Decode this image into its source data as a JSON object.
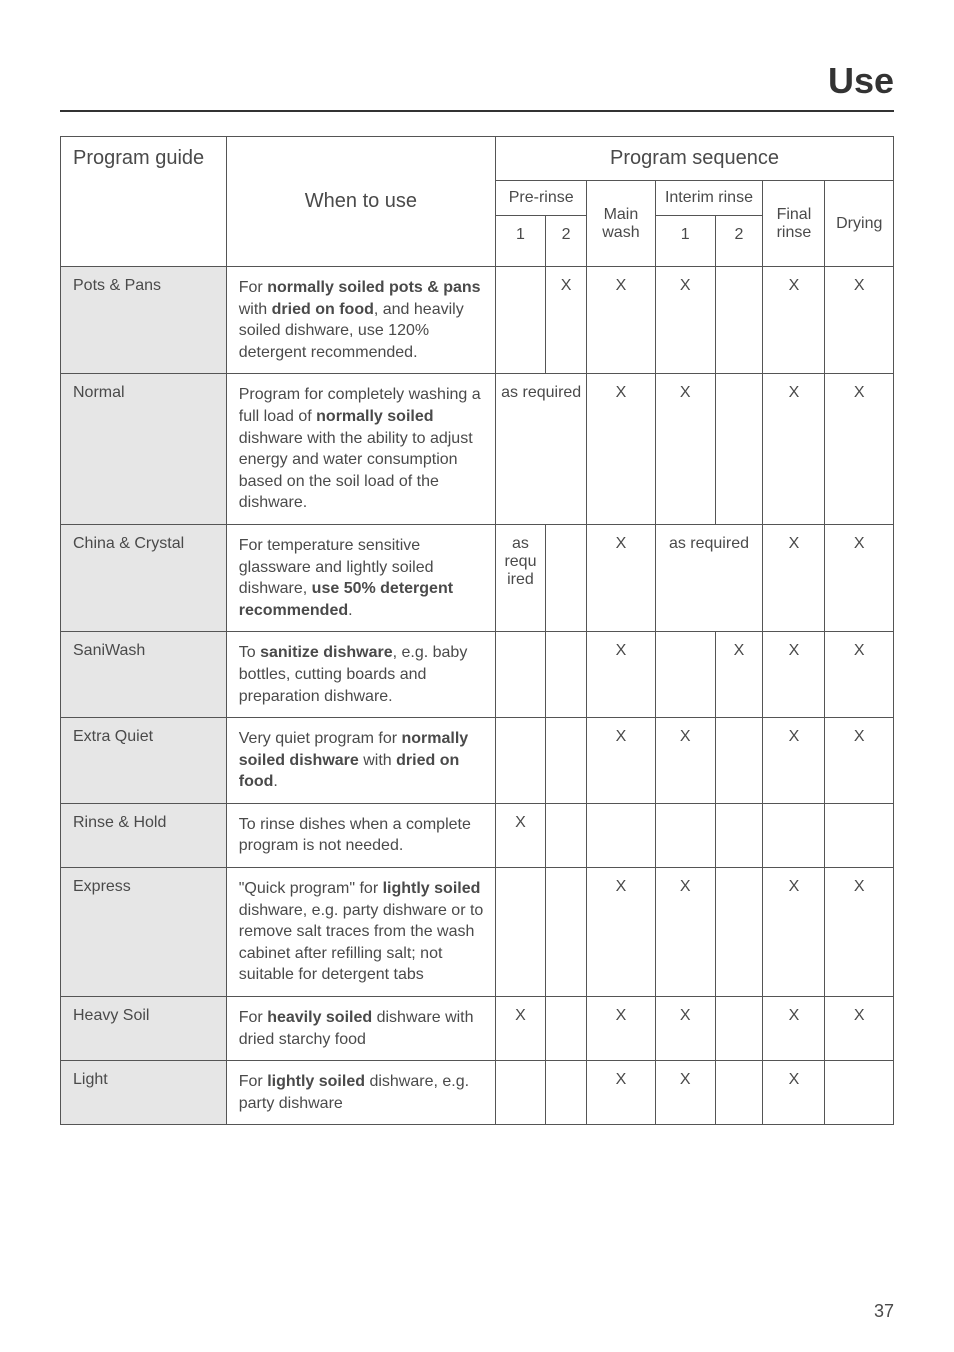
{
  "page": {
    "title": "Use",
    "number": "37"
  },
  "headers": {
    "program_guide": "Program guide",
    "when_to_use": "When to use",
    "program_sequence": "Program sequence",
    "pre_rinse": "Pre-rinse",
    "main_wash": "Main wash",
    "interim_rinse": "Interim rinse",
    "final_rinse": "Final rinse",
    "drying": "Drying",
    "one": "1",
    "two": "2"
  },
  "rows": [
    {
      "program": "Pots & Pans",
      "desc": "For <b>normally soiled pots & pans</b> with <b>dried on food</b>, and heavily soiled dishware, use 120% detergent recommended.",
      "pr1": "",
      "pr2": "X",
      "main": "X",
      "ir1": "X",
      "ir2": "",
      "final": "X",
      "dry": "X"
    },
    {
      "program": "Normal",
      "desc": "Program for completely washing a full load of <b>normally soiled</b> dishware with the ability to adjust energy and water consumption based on the soil load of the dishware.",
      "pr_span": "as required",
      "main": "X",
      "ir1": "X",
      "ir2": "",
      "final": "X",
      "dry": "X"
    },
    {
      "program": "China & Crystal",
      "desc": "For temperature sensitive glassware and lightly soiled dishware, <b>use 50% detergent recommended</b>.",
      "pr1": "as requ ired",
      "pr2": "",
      "main": "X",
      "ir_span": "as required",
      "final": "X",
      "dry": "X"
    },
    {
      "program": "SaniWash",
      "desc": "To <b>sanitize dishware</b>, e.g. baby bottles, cutting boards and preparation dishware.",
      "pr1": "",
      "pr2": "",
      "main": "X",
      "ir1": "",
      "ir2": "X",
      "final": "X",
      "dry": "X"
    },
    {
      "program": "Extra Quiet",
      "desc": "Very quiet program for <b>normally soiled dishware</b> with <b>dried on food</b>.",
      "pr1": "",
      "pr2": "",
      "main": "X",
      "ir1": "X",
      "ir2": "",
      "final": "X",
      "dry": "X"
    },
    {
      "program": "Rinse & Hold",
      "desc": "To rinse dishes when a complete program is not needed.",
      "pr1": "X",
      "pr2": "",
      "main": "",
      "ir1": "",
      "ir2": "",
      "final": "",
      "dry": ""
    },
    {
      "program": "Express",
      "desc": "\"Quick program\" for <b>lightly soiled</b> dishware, e.g. party dishware or to remove salt traces from the wash cabinet after refilling salt; not suitable for detergent tabs",
      "pr1": "",
      "pr2": "",
      "main": "X",
      "ir1": "X",
      "ir2": "",
      "final": "X",
      "dry": "X"
    },
    {
      "program": "Heavy Soil",
      "desc": "For <b>heavily soiled</b> dishware with dried starchy food",
      "pr1": "X",
      "pr2": "",
      "main": "X",
      "ir1": "X",
      "ir2": "",
      "final": "X",
      "dry": "X"
    },
    {
      "program": "Light",
      "desc": "For <b>lightly soiled</b> dishware, e.g. party dishware",
      "pr1": "",
      "pr2": "",
      "main": "X",
      "ir1": "X",
      "ir2": "",
      "final": "X",
      "dry": ""
    }
  ],
  "colwidths": {
    "program": "160px",
    "desc": "260px",
    "pr1": "48px",
    "pr2": "40px",
    "main": "66px",
    "ir1": "58px",
    "ir2": "46px",
    "final": "60px",
    "dry": "66px"
  },
  "colors": {
    "shade": "#e6e6e6",
    "border": "#555555",
    "text": "#4a4a4a"
  }
}
